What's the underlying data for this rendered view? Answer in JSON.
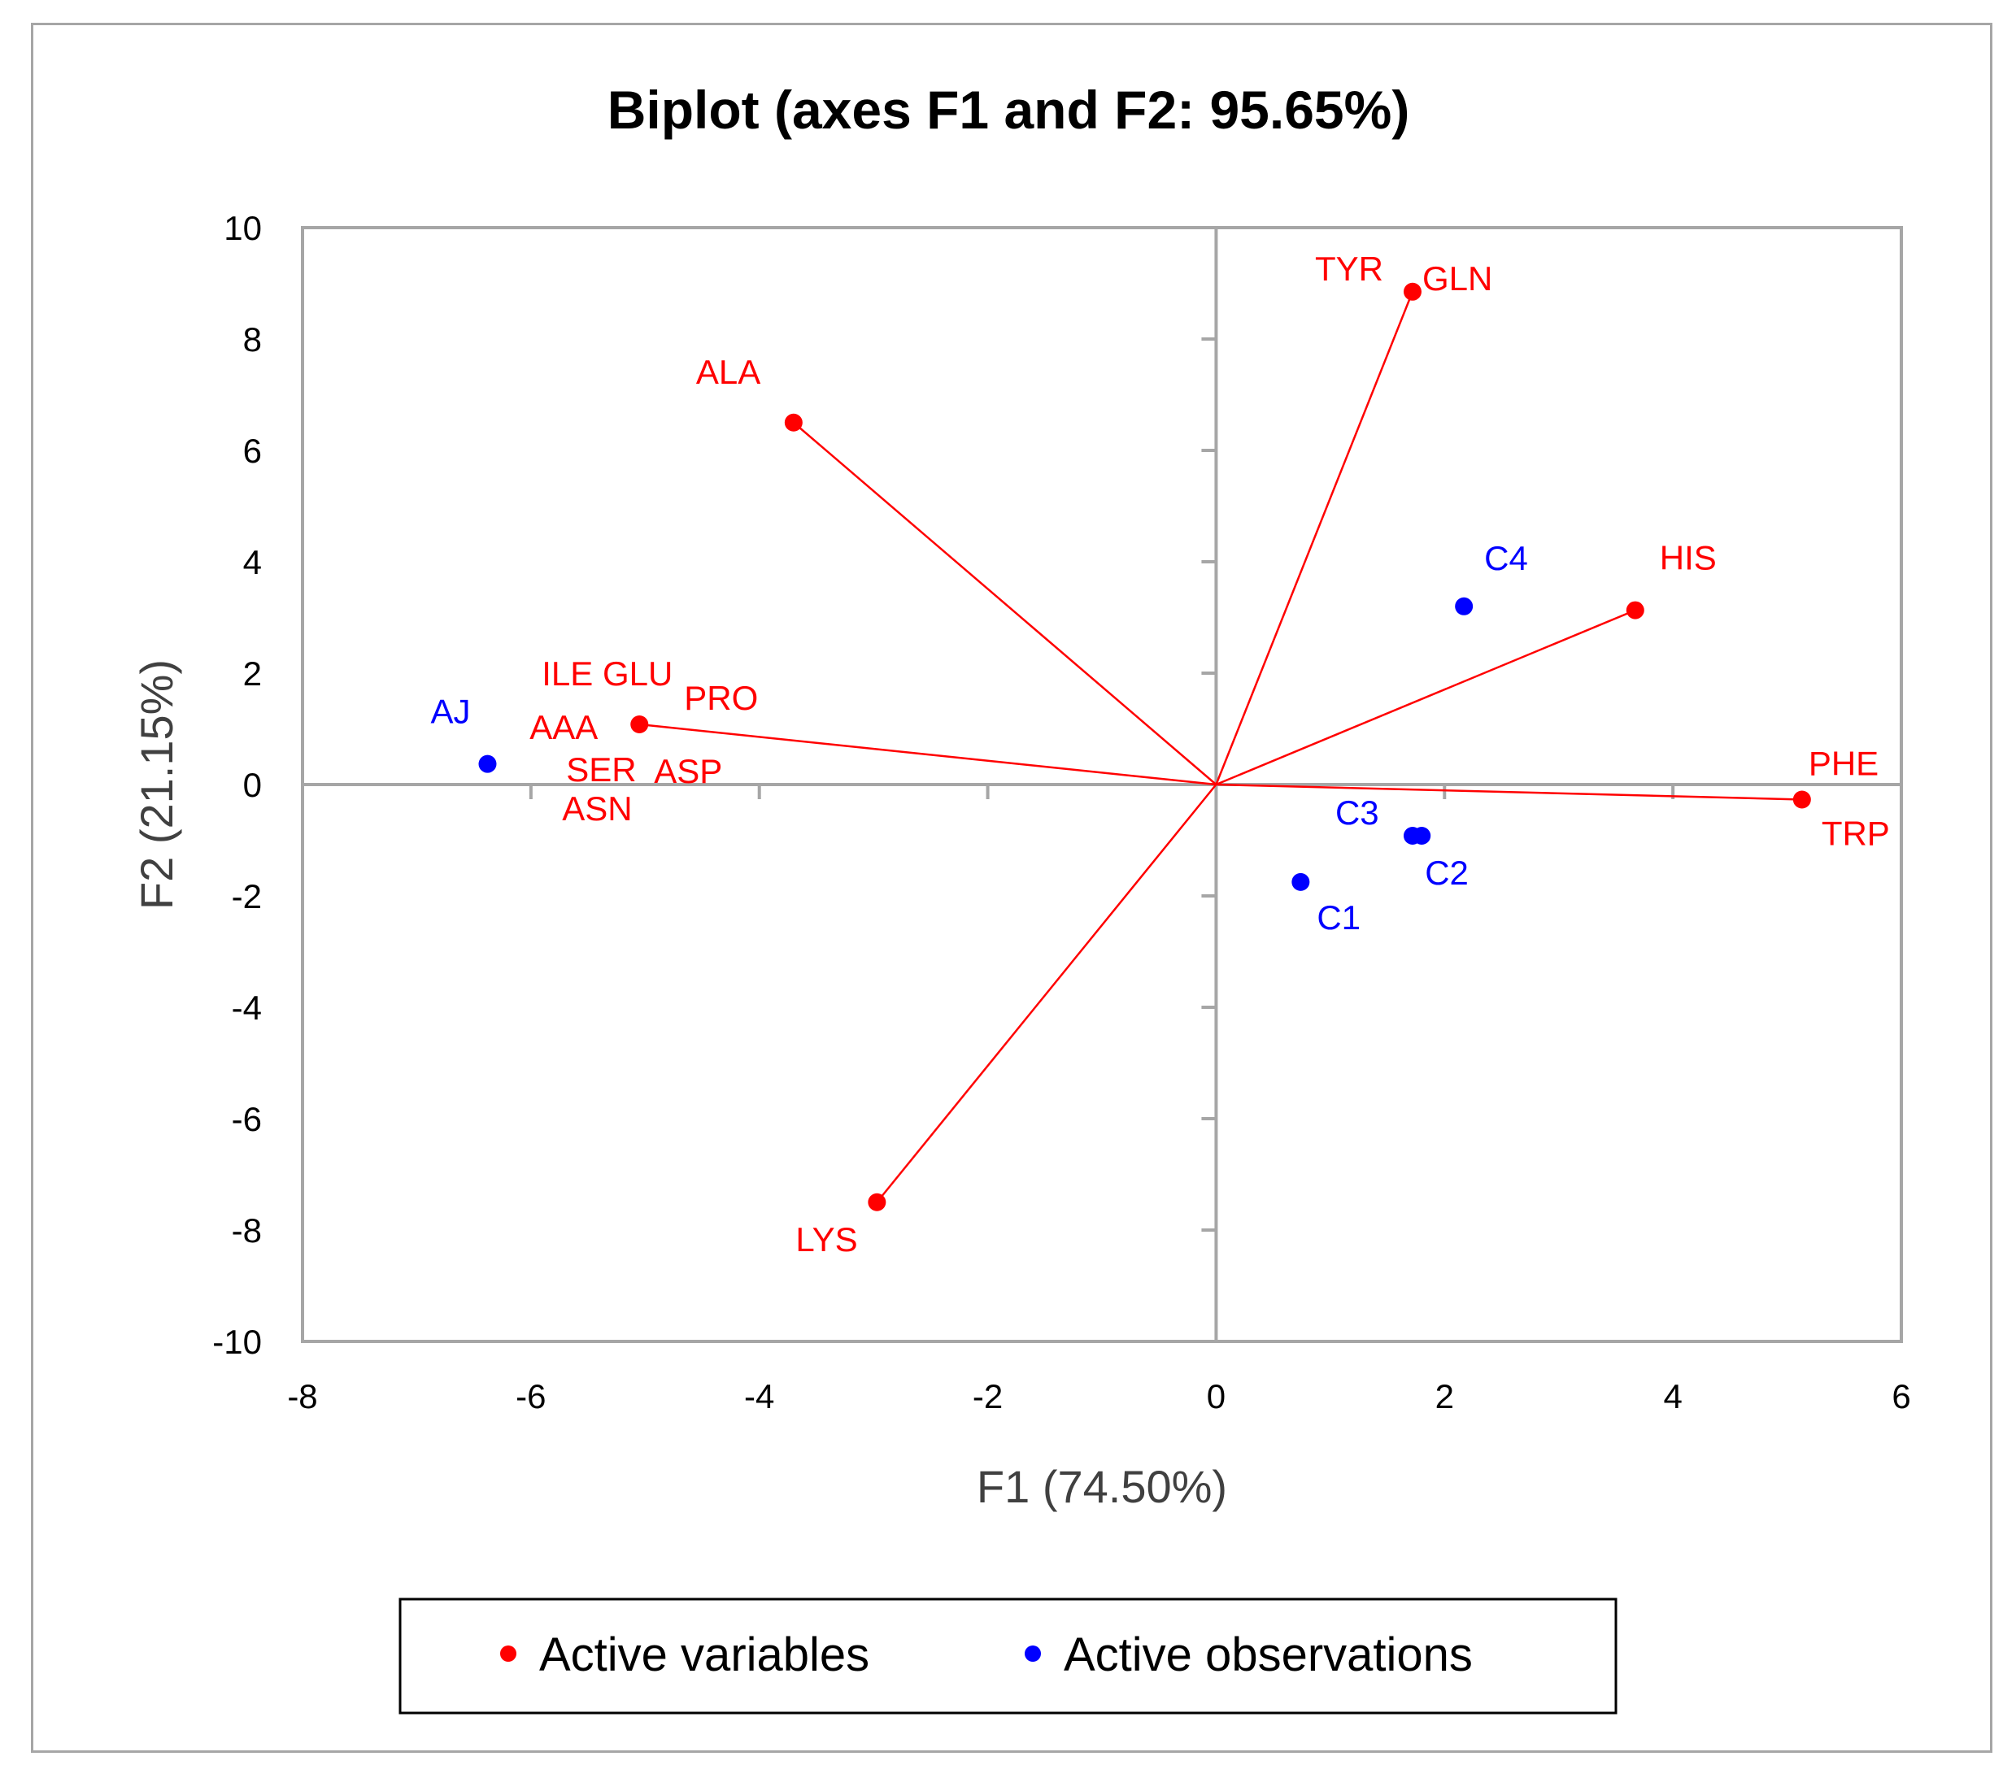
{
  "chart_data": {
    "type": "scatter",
    "title": "Biplot (axes F1 and F2: 95.65%)",
    "xlabel": "F1 (74.50%)",
    "ylabel": "F2 (21.15%)",
    "xlim": [
      -8,
      6
    ],
    "ylim": [
      -10,
      10
    ],
    "xticks": [
      "-8",
      "-6",
      "-4",
      "-2",
      "0",
      "2",
      "4",
      "6"
    ],
    "yticks": [
      "10",
      "8",
      "6",
      "4",
      "2",
      "0",
      "-2",
      "-4",
      "-6",
      "-8",
      "-10"
    ],
    "grid": false,
    "series": [
      {
        "name": "Active variables",
        "color": "#ff0000",
        "vectors_from_origin": true,
        "points": [
          {
            "x": 1.72,
            "y": 8.85,
            "labels": [
              "TYR",
              "GLN"
            ]
          },
          {
            "x": -3.7,
            "y": 6.5,
            "labels": [
              "ALA"
            ]
          },
          {
            "x": 3.67,
            "y": 3.13,
            "labels": [
              "HIS"
            ]
          },
          {
            "x": -5.05,
            "y": 1.08,
            "labels": [
              "ILE GLU",
              "PRO",
              "AAA",
              "SER",
              "ASP",
              "ASN"
            ]
          },
          {
            "x": 5.13,
            "y": -0.27,
            "labels": [
              "PHE",
              "TRP"
            ]
          },
          {
            "x": -2.97,
            "y": -7.5,
            "labels": [
              "LYS"
            ]
          }
        ]
      },
      {
        "name": "Active observations",
        "color": "#0000ff",
        "vectors_from_origin": false,
        "points": [
          {
            "x": -6.38,
            "y": 0.37,
            "labels": [
              "AJ"
            ]
          },
          {
            "x": 2.17,
            "y": 3.2,
            "labels": [
              "C4"
            ]
          },
          {
            "x": 1.72,
            "y": -0.92,
            "labels": [
              "C3"
            ]
          },
          {
            "x": 1.8,
            "y": -0.92,
            "labels": [
              "C2"
            ]
          },
          {
            "x": 0.74,
            "y": -1.75,
            "labels": [
              "C1"
            ]
          }
        ]
      }
    ],
    "legend": {
      "position": "bottom",
      "entries": [
        {
          "label": "Active variables",
          "color": "#ff0000"
        },
        {
          "label": "Active observations",
          "color": "#0000ff"
        }
      ]
    }
  }
}
